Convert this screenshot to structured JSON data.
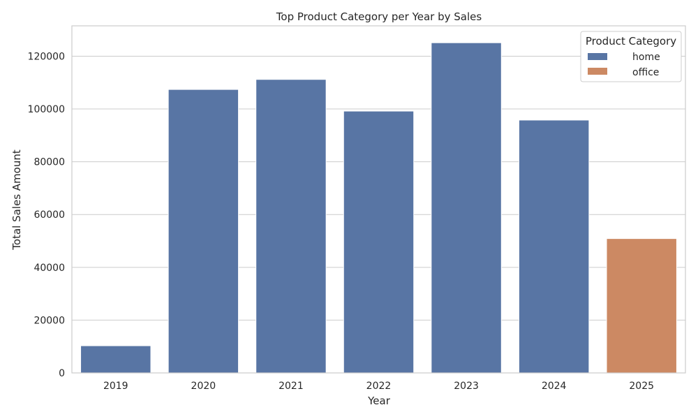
{
  "chart_data": {
    "type": "bar",
    "title": "Top Product Category per Year by Sales",
    "xlabel": "Year",
    "ylabel": "Total Sales Amount",
    "categories": [
      "2019",
      "2020",
      "2021",
      "2022",
      "2023",
      "2024",
      "2025"
    ],
    "values": [
      10300,
      107400,
      111200,
      99200,
      125100,
      95800,
      50900
    ],
    "bar_category": [
      "home",
      "home",
      "home",
      "home",
      "home",
      "home",
      "office"
    ],
    "ylim": [
      0,
      131500
    ],
    "yticks": [
      0,
      20000,
      40000,
      60000,
      80000,
      100000,
      120000
    ],
    "grid": true,
    "legend": {
      "title": "Product Category",
      "placement": "top-right",
      "entries": [
        {
          "name": "home",
          "color": "#5875a4"
        },
        {
          "name": "office",
          "color": "#cc8963"
        }
      ]
    }
  }
}
